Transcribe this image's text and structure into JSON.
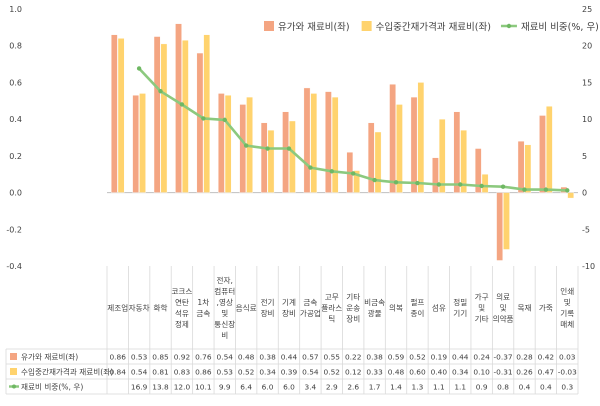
{
  "chart_data": {
    "type": "bar",
    "categories": [
      [
        "제조업"
      ],
      [
        "자동차"
      ],
      [
        "화학"
      ],
      [
        "코크스",
        "연탄",
        "석유",
        "정제"
      ],
      [
        "1차",
        "금속"
      ],
      [
        "전자,",
        "컴퓨터",
        ",영상",
        "및",
        "통신장",
        "비"
      ],
      [
        "음식료"
      ],
      [
        "전기",
        "장비"
      ],
      [
        "기계",
        "장비"
      ],
      [
        "금속",
        "가공업"
      ],
      [
        "고무",
        "플라스",
        "틱"
      ],
      [
        "기타",
        "운송",
        "장비"
      ],
      [
        "비금속",
        "광물"
      ],
      [
        "의복"
      ],
      [
        "펄프",
        "종이"
      ],
      [
        "섬유"
      ],
      [
        "정밀",
        "기기"
      ],
      [
        "가구",
        "및",
        "기타"
      ],
      [
        "의료",
        "및",
        "의약품"
      ],
      [
        "목재"
      ],
      [
        "가죽"
      ],
      [
        "인쇄",
        "및",
        "기록",
        "매체"
      ]
    ],
    "series": [
      {
        "name": "유가와 재료비(좌)",
        "axis": "left",
        "chart": "bar",
        "color": "#F4A582",
        "values": [
          0.86,
          0.53,
          0.85,
          0.92,
          0.76,
          0.54,
          0.48,
          0.38,
          0.44,
          0.57,
          0.55,
          0.22,
          0.38,
          0.59,
          0.52,
          0.19,
          0.44,
          0.24,
          -0.37,
          0.28,
          0.42,
          0.03
        ],
        "labels": [
          "0.86",
          "0.53",
          "0.85",
          "0.92",
          "0.76",
          "0.54",
          "0.48",
          "0.38",
          "0.44",
          "0.57",
          "0.55",
          "0.22",
          "0.38",
          "0.59",
          "0.52",
          "0.19",
          "0.44",
          "0.24",
          "-0.37",
          "0.28",
          "0.42",
          "0.03"
        ]
      },
      {
        "name": "수입중간재가격과 재료비(좌)",
        "axis": "left",
        "chart": "bar",
        "color": "#FFD36E",
        "values": [
          0.84,
          0.54,
          0.81,
          0.83,
          0.86,
          0.53,
          0.52,
          0.34,
          0.39,
          0.54,
          0.52,
          0.12,
          0.33,
          0.48,
          0.6,
          0.4,
          0.34,
          0.1,
          -0.31,
          0.26,
          0.47,
          -0.03
        ],
        "labels": [
          "0.84",
          "0.54",
          "0.81",
          "0.83",
          "0.86",
          "0.53",
          "0.52",
          "0.34",
          "0.39",
          "0.54",
          "0.52",
          "0.12",
          "0.33",
          "0.48",
          "0.60",
          "0.40",
          "0.34",
          "0.10",
          "-0.31",
          "0.26",
          "0.47",
          "-0.03"
        ]
      },
      {
        "name": "재료비 비중(%, 우)",
        "axis": "right",
        "chart": "line",
        "color": "#8CC97E",
        "values": [
          null,
          16.9,
          13.8,
          12.0,
          10.1,
          9.9,
          6.4,
          6.0,
          6.0,
          3.4,
          2.9,
          2.6,
          1.7,
          1.4,
          1.3,
          1.1,
          1.1,
          0.9,
          0.8,
          0.4,
          0.4,
          0.3
        ],
        "labels": [
          "",
          "16.9",
          "13.8",
          "12.0",
          "10.1",
          "9.9",
          "6.4",
          "6.0",
          "6.0",
          "3.4",
          "2.9",
          "2.6",
          "1.7",
          "1.4",
          "1.3",
          "1.1",
          "1.1",
          "0.9",
          "0.8",
          "0.4",
          "0.4",
          "0.3"
        ]
      }
    ],
    "y_left": {
      "min": -0.4,
      "max": 1.0,
      "ticks": [
        "1.0",
        "0.8",
        "0.6",
        "0.4",
        "0.2",
        "0.0",
        "-0.2",
        "-0.4"
      ]
    },
    "y_right": {
      "min": -10,
      "max": 25,
      "ticks": [
        "25",
        "20",
        "15",
        "10",
        "5",
        "0",
        "-5",
        "-10"
      ]
    },
    "legend": {
      "placement": "top-right"
    },
    "table_below": true,
    "grid": false
  }
}
